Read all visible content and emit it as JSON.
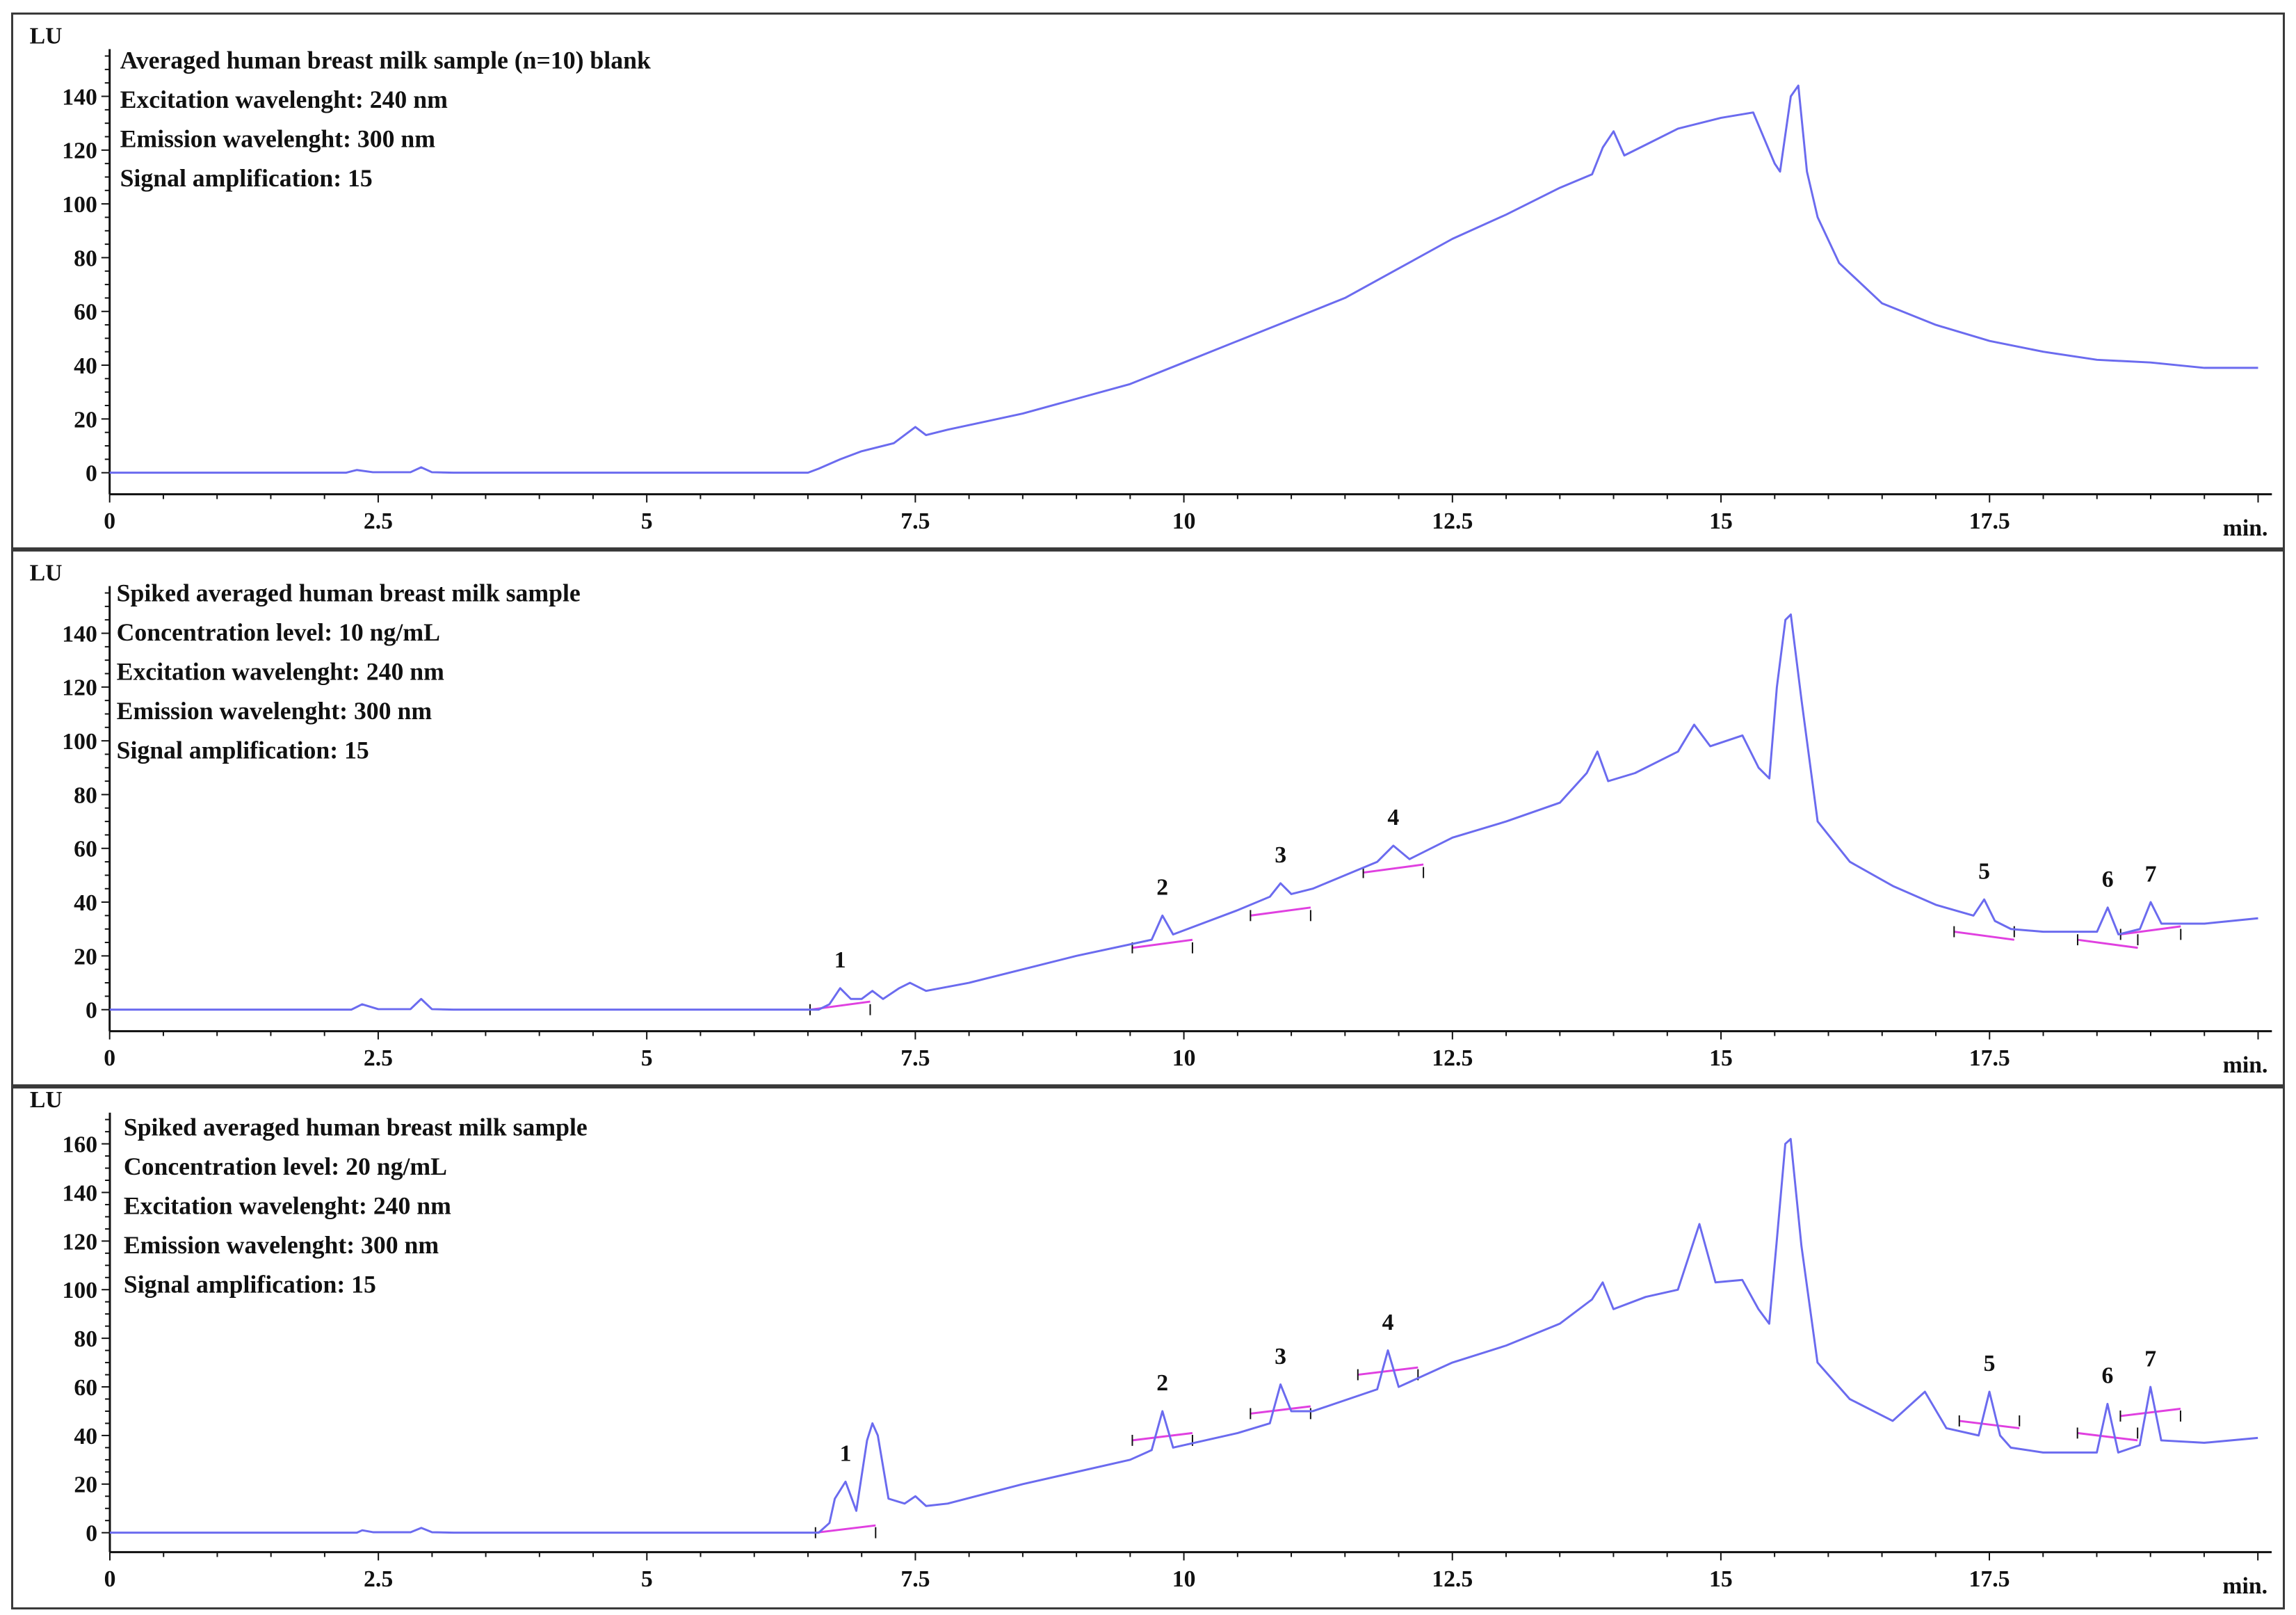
{
  "figure": {
    "colors": {
      "trace": "#6b6bef",
      "baseline": "#e040e0",
      "axis": "#111111",
      "frame": "#3a3a3a"
    }
  },
  "chart_data": [
    {
      "type": "line",
      "title": "Averaged human breast milk sample (n=10) blank",
      "annotations": [
        "Averaged human breast milk sample (n=10) blank",
        "Excitation wavelenght: 240 nm",
        "Emission wavelenght: 300 nm",
        "Signal amplification: 15"
      ],
      "xlabel": "min.",
      "ylabel": "LU",
      "xlim": [
        0,
        20
      ],
      "ylim": [
        -8,
        155
      ],
      "xticks": [
        0,
        2.5,
        5,
        7.5,
        10,
        12.5,
        15,
        17.5
      ],
      "xtick_labels": [
        "0",
        "2.5",
        "5",
        "7.5",
        "10",
        "12.5",
        "15",
        "17.5"
      ],
      "yticks": [
        0,
        20,
        40,
        60,
        80,
        100,
        120,
        140
      ],
      "ytick_labels": [
        "0",
        "20",
        "40",
        "60",
        "80",
        "100",
        "120",
        "140"
      ],
      "series": [
        {
          "name": "blank",
          "x": [
            0,
            2.2,
            2.3,
            2.45,
            2.8,
            2.9,
            3.0,
            3.2,
            6.5,
            6.6,
            6.8,
            7.0,
            7.3,
            7.5,
            7.6,
            7.8,
            8.5,
            9.5,
            10.0,
            10.5,
            11.0,
            11.5,
            12.0,
            12.5,
            13.0,
            13.5,
            13.8,
            13.9,
            14.0,
            14.1,
            14.3,
            14.6,
            15.0,
            15.3,
            15.5,
            15.55,
            15.65,
            15.72,
            15.8,
            15.9,
            16.1,
            16.5,
            17.0,
            17.5,
            18.0,
            18.5,
            19.0,
            19.5,
            20.0
          ],
          "y": [
            0,
            0,
            1,
            0.2,
            0.2,
            2,
            0.2,
            0,
            0,
            1.5,
            5,
            8,
            11,
            17,
            14,
            16,
            22,
            33,
            41,
            49,
            57,
            65,
            76,
            87,
            96,
            106,
            111,
            121,
            127,
            118,
            122,
            128,
            132,
            134,
            115,
            112,
            140,
            144,
            112,
            95,
            78,
            63,
            55,
            49,
            45,
            42,
            41,
            39,
            39
          ]
        }
      ],
      "peaks": []
    },
    {
      "type": "line",
      "title": "Spiked averaged human breast milk sample",
      "annotations": [
        "Spiked averaged human breast milk sample",
        "Concentration level: 10 ng/mL",
        "Excitation wavelenght: 240 nm",
        "Emission wavelenght: 300 nm",
        "Signal amplification: 15"
      ],
      "xlabel": "min.",
      "ylabel": "LU",
      "xlim": [
        0,
        20
      ],
      "ylim": [
        -8,
        155
      ],
      "xticks": [
        0,
        2.5,
        5,
        7.5,
        10,
        12.5,
        15,
        17.5
      ],
      "xtick_labels": [
        "0",
        "2.5",
        "5",
        "7.5",
        "10",
        "12.5",
        "15",
        "17.5"
      ],
      "yticks": [
        0,
        20,
        40,
        60,
        80,
        100,
        120,
        140
      ],
      "ytick_labels": [
        "0",
        "20",
        "40",
        "60",
        "80",
        "100",
        "120",
        "140"
      ],
      "series": [
        {
          "name": "10 ng/mL",
          "x": [
            0,
            2.25,
            2.35,
            2.5,
            2.8,
            2.9,
            3.0,
            3.2,
            6.6,
            6.7,
            6.8,
            6.9,
            7.0,
            7.1,
            7.2,
            7.35,
            7.45,
            7.6,
            8.0,
            9.0,
            9.7,
            9.8,
            9.9,
            10.5,
            10.8,
            10.9,
            11.0,
            11.2,
            11.8,
            11.95,
            12.1,
            12.5,
            13.0,
            13.5,
            13.75,
            13.85,
            13.95,
            14.2,
            14.6,
            14.75,
            14.9,
            15.2,
            15.35,
            15.45,
            15.52,
            15.6,
            15.65,
            15.75,
            15.9,
            16.2,
            16.6,
            17.0,
            17.35,
            17.45,
            17.55,
            17.7,
            18.0,
            18.5,
            18.6,
            18.7,
            18.9,
            19.0,
            19.1,
            19.5,
            20.0
          ],
          "y": [
            0,
            0,
            2,
            0.2,
            0.2,
            4,
            0.2,
            0,
            0,
            2,
            8,
            4,
            4,
            7,
            4,
            8,
            10,
            7,
            10,
            20,
            26,
            35,
            28,
            37,
            42,
            47,
            43,
            45,
            55,
            61,
            56,
            64,
            70,
            77,
            88,
            96,
            85,
            88,
            96,
            106,
            98,
            102,
            90,
            86,
            120,
            145,
            147,
            115,
            70,
            55,
            46,
            39,
            35,
            41,
            33,
            30,
            29,
            29,
            38,
            28,
            30,
            40,
            32,
            32,
            34
          ]
        }
      ],
      "peaks": [
        {
          "label": "1",
          "rt": 6.8,
          "height": 8
        },
        {
          "label": "2",
          "rt": 9.8,
          "height": 35
        },
        {
          "label": "3",
          "rt": 10.9,
          "height": 47
        },
        {
          "label": "4",
          "rt": 11.95,
          "height": 61
        },
        {
          "label": "5",
          "rt": 17.45,
          "height": 41
        },
        {
          "label": "6",
          "rt": 18.6,
          "height": 38
        },
        {
          "label": "7",
          "rt": 19.0,
          "height": 40
        }
      ]
    },
    {
      "type": "line",
      "title": "Spiked averaged human breast milk sample",
      "annotations": [
        "Spiked averaged human breast milk sample",
        "Concentration level: 20 ng/mL",
        "Excitation wavelenght: 240 nm",
        "Emission wavelenght: 300 nm",
        "Signal amplification: 15"
      ],
      "xlabel": "min.",
      "ylabel": "LU",
      "xlim": [
        0,
        20
      ],
      "ylim": [
        -8,
        170
      ],
      "xticks": [
        0,
        2.5,
        5,
        7.5,
        10,
        12.5,
        15,
        17.5
      ],
      "xtick_labels": [
        "0",
        "2.5",
        "5",
        "7.5",
        "10",
        "12.5",
        "15",
        "17.5"
      ],
      "yticks": [
        0,
        20,
        40,
        60,
        80,
        100,
        120,
        140,
        160
      ],
      "ytick_labels": [
        "0",
        "20",
        "40",
        "60",
        "80",
        "100",
        "120",
        "140",
        "160"
      ],
      "series": [
        {
          "name": "20 ng/mL",
          "x": [
            0,
            2.3,
            2.35,
            2.45,
            2.8,
            2.9,
            3.0,
            3.2,
            6.6,
            6.7,
            6.75,
            6.85,
            6.95,
            7.05,
            7.1,
            7.15,
            7.25,
            7.4,
            7.5,
            7.6,
            7.8,
            8.5,
            9.5,
            9.7,
            9.8,
            9.9,
            10.5,
            10.8,
            10.9,
            11.0,
            11.2,
            11.8,
            11.9,
            12.0,
            12.5,
            13.0,
            13.5,
            13.8,
            13.9,
            14.0,
            14.3,
            14.6,
            14.8,
            14.95,
            15.2,
            15.35,
            15.45,
            15.52,
            15.6,
            15.65,
            15.75,
            15.9,
            16.2,
            16.6,
            16.9,
            17.1,
            17.4,
            17.5,
            17.6,
            17.7,
            18.0,
            18.5,
            18.6,
            18.7,
            18.9,
            19.0,
            19.1,
            19.5,
            20.0
          ],
          "y": [
            0,
            0,
            1,
            0.2,
            0.2,
            2,
            0.2,
            0,
            0,
            4,
            14,
            21,
            9,
            38,
            45,
            40,
            14,
            12,
            15,
            11,
            12,
            20,
            30,
            34,
            50,
            35,
            41,
            45,
            61,
            50,
            50,
            59,
            75,
            60,
            70,
            77,
            86,
            96,
            103,
            92,
            97,
            100,
            127,
            103,
            104,
            92,
            86,
            120,
            160,
            162,
            118,
            70,
            55,
            46,
            58,
            43,
            40,
            58,
            40,
            35,
            33,
            33,
            53,
            33,
            36,
            60,
            38,
            37,
            39
          ]
        }
      ],
      "peaks": [
        {
          "label": "1",
          "rt": 6.85,
          "height": 21
        },
        {
          "label": "2",
          "rt": 9.8,
          "height": 50
        },
        {
          "label": "3",
          "rt": 10.9,
          "height": 61
        },
        {
          "label": "4",
          "rt": 11.9,
          "height": 75
        },
        {
          "label": "5",
          "rt": 17.5,
          "height": 58
        },
        {
          "label": "6",
          "rt": 18.6,
          "height": 53
        },
        {
          "label": "7",
          "rt": 19.0,
          "height": 60
        }
      ]
    }
  ]
}
